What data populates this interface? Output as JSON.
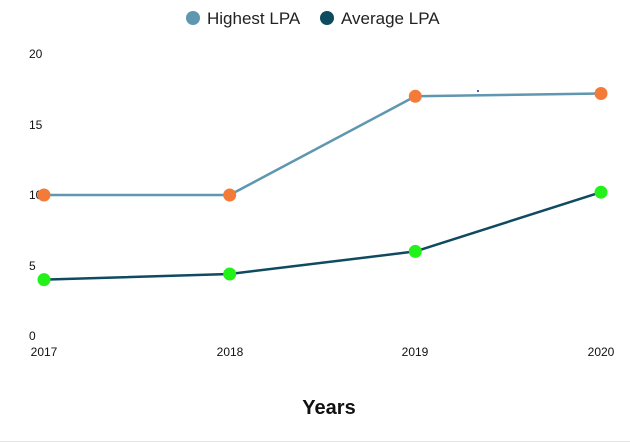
{
  "chart_data": {
    "type": "line",
    "x": [
      "2017",
      "2018",
      "2019",
      "2020"
    ],
    "series": [
      {
        "name": "Highest LPA",
        "values": [
          10,
          10,
          17,
          17.2
        ],
        "line_color": "#5f96b0",
        "marker_color": "#f47a3a"
      },
      {
        "name": "Average LPA",
        "values": [
          4,
          4.4,
          6,
          10.2
        ],
        "line_color": "#0e4a60",
        "marker_color": "#22f21a"
      }
    ],
    "yticks": [
      "0",
      "5",
      "10",
      "15",
      "20"
    ],
    "ylim": [
      0,
      20
    ],
    "xlabel": "Years",
    "ylabel": "",
    "title": "",
    "grid": false,
    "legend_position": "top-center"
  }
}
